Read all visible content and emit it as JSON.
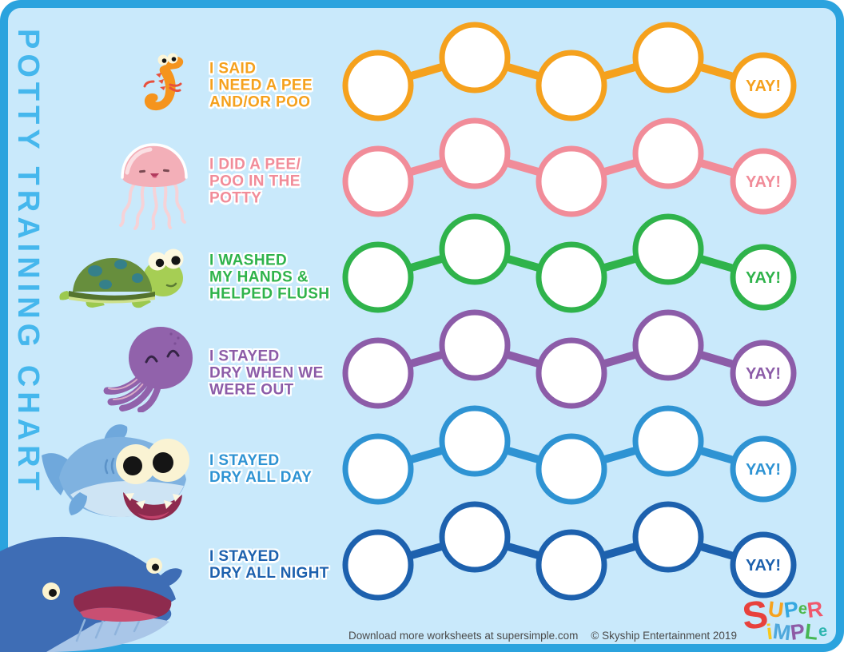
{
  "page": {
    "title": "POTTY TRAINING CHART",
    "frame_color": "#2BA3DE",
    "background_color": "#C9E9FB",
    "title_color": "#45B7ED"
  },
  "rows": [
    {
      "animal": "seahorse",
      "color": "#F5A11D",
      "label_lines": [
        "I SAID",
        "I NEED A PEE",
        "AND/OR POO"
      ],
      "yay_label": "YAY!",
      "blank_spots": 4
    },
    {
      "animal": "jellyfish",
      "color": "#F18C99",
      "label_lines": [
        "I DID A PEE/",
        "POO IN THE",
        "POTTY"
      ],
      "yay_label": "YAY!",
      "blank_spots": 4
    },
    {
      "animal": "turtle",
      "color": "#2FB34B",
      "label_lines": [
        "I WASHED",
        "MY HANDS &",
        "HELPED FLUSH"
      ],
      "yay_label": "YAY!",
      "blank_spots": 4
    },
    {
      "animal": "octopus",
      "color": "#8C5CA8",
      "label_lines": [
        "I STAYED",
        "DRY WHEN WE",
        "WERE OUT"
      ],
      "yay_label": "YAY!",
      "blank_spots": 4
    },
    {
      "animal": "shark",
      "color": "#2E93D3",
      "label_lines": [
        "I STAYED",
        "DRY ALL DAY"
      ],
      "yay_label": "YAY!",
      "blank_spots": 4
    },
    {
      "animal": "whale",
      "color": "#1D61AE",
      "label_lines": [
        "I STAYED",
        "DRY ALL NIGHT"
      ],
      "yay_label": "YAY!",
      "blank_spots": 4
    }
  ],
  "footer": {
    "download_text": "Download more worksheets at supersimple.com",
    "copyright_text": "© Skyship Entertainment 2019"
  },
  "logo": {
    "big_letter": {
      "ch": "S",
      "color": "#E8413C"
    },
    "top_row": [
      {
        "ch": "U",
        "color": "#F6A21F"
      },
      {
        "ch": "P",
        "color": "#35A8E0"
      },
      {
        "ch": "e",
        "color": "#4CB748",
        "small": true
      },
      {
        "ch": "R",
        "color": "#F0586C"
      }
    ],
    "bottom_row": [
      {
        "ch": "i",
        "color": "#F8C81C"
      },
      {
        "ch": "M",
        "color": "#4FA8DC"
      },
      {
        "ch": "P",
        "color": "#8E5BA6"
      },
      {
        "ch": "L",
        "color": "#46B753"
      },
      {
        "ch": "e",
        "color": "#2BB5AE",
        "small": true
      }
    ]
  }
}
